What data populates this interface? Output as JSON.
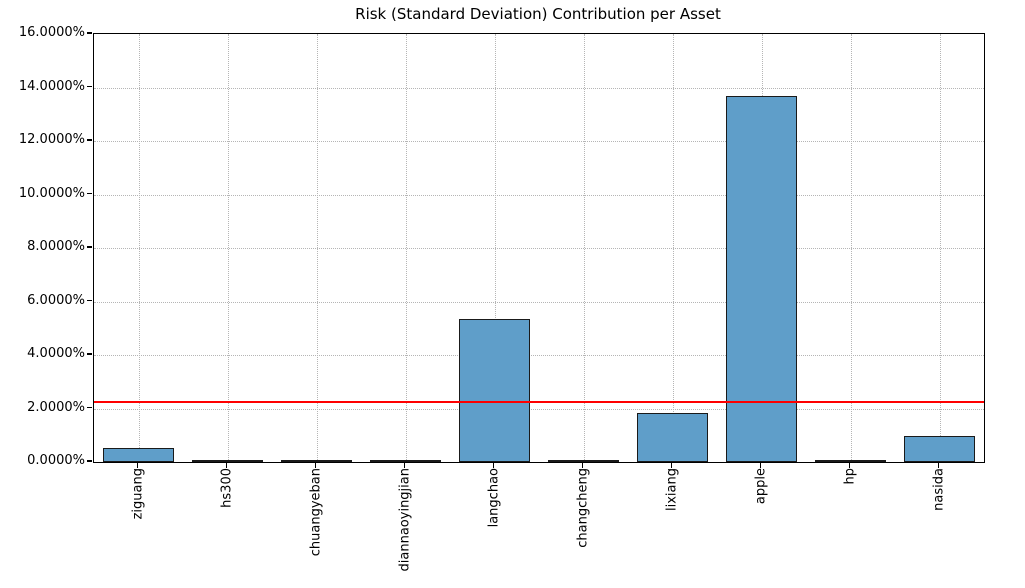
{
  "chart_data": {
    "type": "bar",
    "title": "Risk (Standard Deviation) Contribution per Asset",
    "xlabel": "",
    "ylabel": "",
    "unit": "percent",
    "categories": [
      "ziguang",
      "hs300",
      "chuangyeban",
      "diannaoyingjian",
      "langchao",
      "changcheng",
      "lixiang",
      "apple",
      "hp",
      "nasida"
    ],
    "values": [
      0.52,
      0.02,
      0.02,
      0.01,
      5.36,
      0.02,
      1.83,
      13.68,
      0.02,
      0.97
    ],
    "ylim": [
      0,
      16
    ],
    "yticks": [
      {
        "value": 0,
        "label": "0.0000%"
      },
      {
        "value": 2,
        "label": "2.0000%"
      },
      {
        "value": 4,
        "label": "4.0000%"
      },
      {
        "value": 6,
        "label": "6.0000%"
      },
      {
        "value": 8,
        "label": "8.0000%"
      },
      {
        "value": 10,
        "label": "10.0000%"
      },
      {
        "value": 12,
        "label": "12.0000%"
      },
      {
        "value": 14,
        "label": "14.0000%"
      },
      {
        "value": 16,
        "label": "16.0000%"
      }
    ],
    "reference_line": {
      "value": 2.25,
      "orientation": "horizontal",
      "color": "#ff0000"
    },
    "grid": "dotted-both-axes",
    "legend": "none",
    "xtick_rotation": 90,
    "bar_color": "#5f9ec9",
    "bar_edge_color": "#1a1a1a",
    "gridline_color": "#b5b5b5",
    "background_color": "#ffffff",
    "text_color": "#000000"
  }
}
